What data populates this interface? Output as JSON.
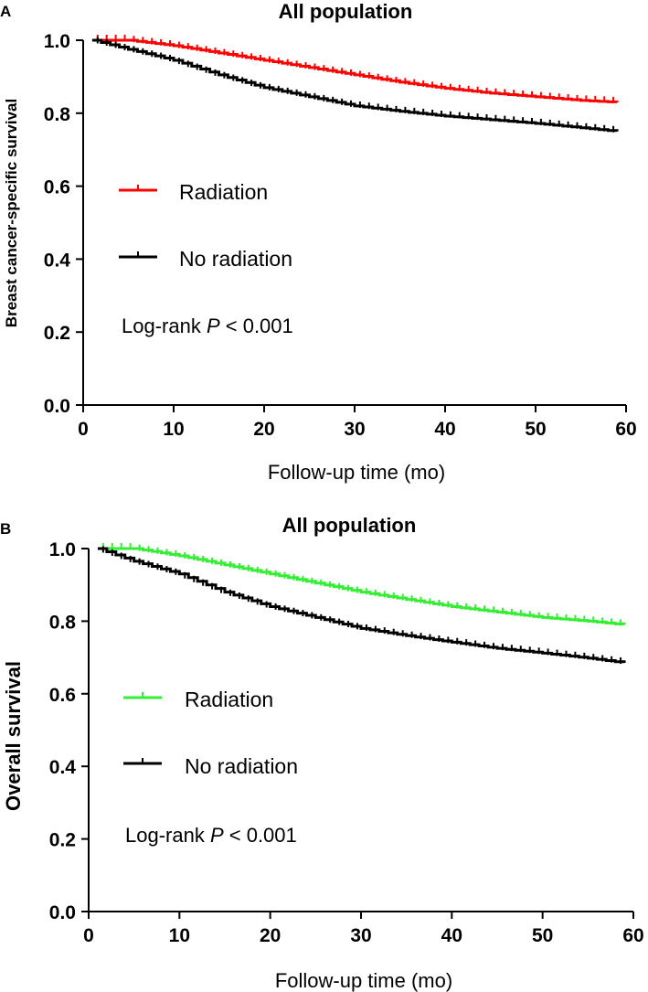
{
  "chart_data": [
    {
      "panel": "A",
      "type": "line",
      "title": "All population",
      "xlabel": "Follow-up time (mo)",
      "ylabel": "Breast cancer-specific survival",
      "xlim": [
        0,
        60
      ],
      "ylim": [
        0,
        1.0
      ],
      "xticks": [
        "0",
        "10",
        "20",
        "30",
        "40",
        "50",
        "60"
      ],
      "yticks": [
        "0.0",
        "0.2",
        "0.4",
        "0.6",
        "0.8",
        "1.0"
      ],
      "annotation": {
        "prefix": "Log-rank ",
        "italic": "P",
        "suffix": " < 0.001"
      },
      "series": [
        {
          "name": "Radiation",
          "color": "#ff0000",
          "x": [
            1,
            5,
            10,
            15,
            20,
            25,
            30,
            35,
            40,
            45,
            50,
            55,
            59
          ],
          "y": [
            1.0,
            1.0,
            0.985,
            0.965,
            0.945,
            0.925,
            0.905,
            0.885,
            0.868,
            0.855,
            0.845,
            0.835,
            0.83
          ]
        },
        {
          "name": "No radiation",
          "color": "#000000",
          "x": [
            1,
            5,
            10,
            15,
            20,
            25,
            30,
            35,
            40,
            45,
            50,
            55,
            59
          ],
          "y": [
            1.0,
            0.975,
            0.945,
            0.905,
            0.87,
            0.845,
            0.82,
            0.805,
            0.792,
            0.782,
            0.772,
            0.76,
            0.75
          ]
        }
      ]
    },
    {
      "panel": "B",
      "type": "line",
      "title": "All population",
      "xlabel": "Follow-up time (mo)",
      "ylabel": "Overall survival",
      "xlim": [
        0,
        60
      ],
      "ylim": [
        0,
        1.0
      ],
      "xticks": [
        "0",
        "10",
        "20",
        "30",
        "40",
        "50",
        "60"
      ],
      "yticks": [
        "0.0",
        "0.2",
        "0.4",
        "0.6",
        "0.8",
        "1.0"
      ],
      "annotation": {
        "prefix": "Log-rank ",
        "italic": "P",
        "suffix": " < 0.001"
      },
      "series": [
        {
          "name": "Radiation",
          "color": "#33ee33",
          "x": [
            1,
            5,
            10,
            15,
            20,
            25,
            30,
            35,
            40,
            45,
            50,
            55,
            59
          ],
          "y": [
            1.0,
            1.0,
            0.98,
            0.955,
            0.93,
            0.905,
            0.88,
            0.86,
            0.84,
            0.825,
            0.81,
            0.8,
            0.79
          ]
        },
        {
          "name": "No radiation",
          "color": "#000000",
          "x": [
            1,
            5,
            10,
            15,
            20,
            25,
            30,
            35,
            40,
            45,
            50,
            55,
            59
          ],
          "y": [
            1.0,
            0.965,
            0.93,
            0.88,
            0.84,
            0.81,
            0.78,
            0.76,
            0.742,
            0.725,
            0.712,
            0.698,
            0.685
          ]
        }
      ]
    }
  ]
}
